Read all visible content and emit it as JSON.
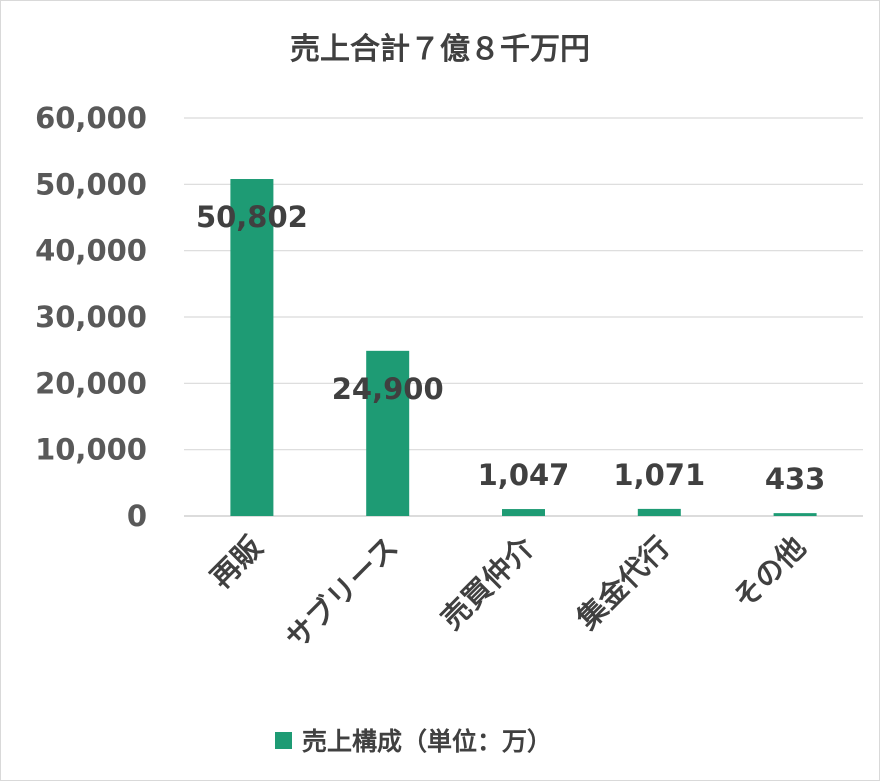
{
  "chart_data": {
    "type": "bar",
    "title": "売上合計７億８千万円",
    "categories": [
      "再販",
      "サブリース",
      "売買仲介",
      "集金代行",
      "その他"
    ],
    "series": [
      {
        "name": "売上構成（単位：万）",
        "values": [
          50802,
          24900,
          1047,
          1071,
          433
        ]
      }
    ],
    "data_labels": [
      "50,802",
      "24,900",
      "1,047",
      "1,071",
      "433"
    ],
    "y_ticks": [
      "0",
      "10,000",
      "20,000",
      "30,000",
      "40,000",
      "50,000",
      "60,000"
    ],
    "ylim": [
      0,
      60000
    ],
    "grid": true,
    "legend_position": "bottom",
    "color": "#1e9b74"
  }
}
